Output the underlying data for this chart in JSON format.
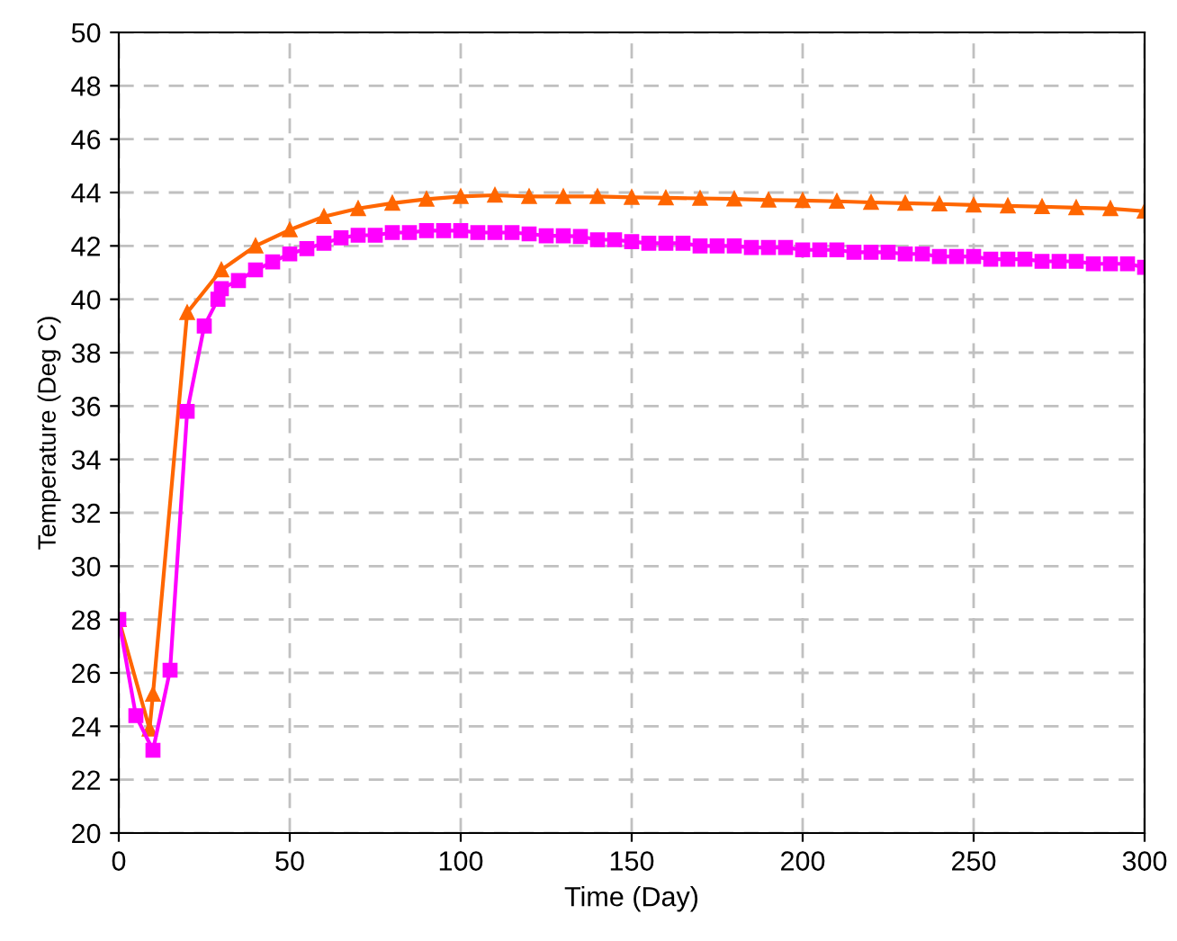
{
  "chart_data": {
    "type": "line",
    "xlabel": "Time (Day)",
    "ylabel": "Temperature (Deg C)",
    "xlim": [
      0,
      300
    ],
    "ylim": [
      20,
      50
    ],
    "xticks": [
      0,
      50,
      100,
      150,
      200,
      250,
      300
    ],
    "yticks": [
      20,
      22,
      24,
      26,
      28,
      30,
      32,
      34,
      36,
      38,
      40,
      42,
      44,
      46,
      48,
      50
    ],
    "grid": true,
    "line_style": "solid",
    "series": [
      {
        "color": "#ff6600",
        "marker": "triangle",
        "x": [
          0,
          9,
          10,
          20,
          30,
          40,
          50,
          60,
          70,
          80,
          90,
          100,
          110,
          120,
          130,
          140,
          150,
          160,
          170,
          180,
          190,
          200,
          210,
          220,
          230,
          240,
          250,
          260,
          270,
          280,
          290,
          300
        ],
        "values": [
          28,
          23.9,
          25.2,
          39.5,
          41.1,
          42,
          42.6,
          43.1,
          43.4,
          43.6,
          43.75,
          43.85,
          43.9,
          43.85,
          43.85,
          43.85,
          43.82,
          43.8,
          43.78,
          43.76,
          43.72,
          43.7,
          43.67,
          43.63,
          43.6,
          43.57,
          43.53,
          43.5,
          43.47,
          43.43,
          43.4,
          43.3
        ]
      },
      {
        "color": "#ff00ff",
        "marker": "square",
        "x": [
          0,
          5,
          10,
          15,
          20,
          25,
          29,
          30,
          35,
          40,
          45,
          50,
          55,
          60,
          65,
          70,
          75,
          80,
          85,
          90,
          95,
          100,
          105,
          110,
          115,
          120,
          125,
          130,
          135,
          140,
          145,
          150,
          155,
          160,
          165,
          170,
          175,
          180,
          185,
          190,
          195,
          200,
          205,
          210,
          215,
          220,
          225,
          230,
          235,
          240,
          245,
          250,
          255,
          260,
          265,
          270,
          275,
          280,
          285,
          290,
          295,
          300
        ],
        "values": [
          28,
          24.4,
          23.1,
          26.1,
          35.8,
          39,
          40,
          40.4,
          40.7,
          41.1,
          41.4,
          41.7,
          41.9,
          42.1,
          42.3,
          42.4,
          42.4,
          42.5,
          42.5,
          42.57,
          42.57,
          42.57,
          42.5,
          42.5,
          42.5,
          42.45,
          42.38,
          42.38,
          42.35,
          42.23,
          42.23,
          42.16,
          42.1,
          42.1,
          42.1,
          42,
          42,
          42,
          41.94,
          41.94,
          41.94,
          41.85,
          41.85,
          41.85,
          41.76,
          41.76,
          41.76,
          41.7,
          41.7,
          41.6,
          41.6,
          41.6,
          41.5,
          41.5,
          41.5,
          41.42,
          41.42,
          41.42,
          41.33,
          41.33,
          41.33,
          41.2
        ]
      }
    ]
  }
}
